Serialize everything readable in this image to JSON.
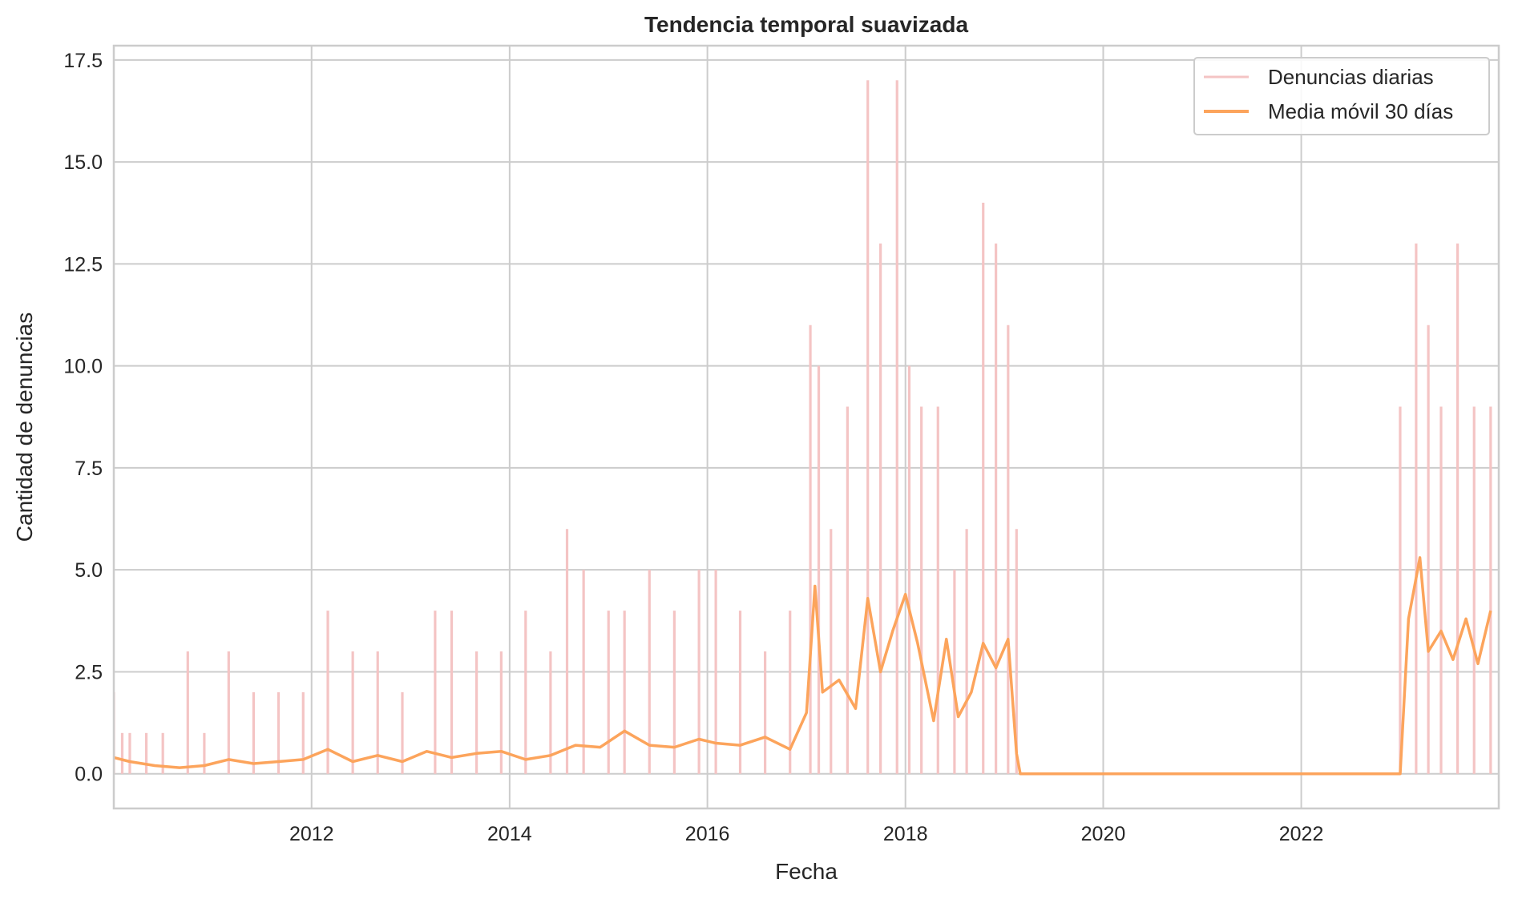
{
  "chart_data": {
    "type": "line",
    "title": "Tendencia temporal suavizada",
    "xlabel": "Fecha",
    "ylabel": "Cantidad de denuncias",
    "x_axis_type": "date",
    "xlim": [
      "2010-01-01",
      "2023-12-31"
    ],
    "ylim": [
      -0.85,
      17.85
    ],
    "x_ticks": [
      {
        "date": "2012-01-01",
        "label": "2012"
      },
      {
        "date": "2014-01-01",
        "label": "2014"
      },
      {
        "date": "2016-01-01",
        "label": "2016"
      },
      {
        "date": "2018-01-01",
        "label": "2018"
      },
      {
        "date": "2020-01-01",
        "label": "2020"
      },
      {
        "date": "2022-01-01",
        "label": "2022"
      }
    ],
    "y_ticks": [
      {
        "value": 0.0,
        "label": "0.0"
      },
      {
        "value": 2.5,
        "label": "2.5"
      },
      {
        "value": 5.0,
        "label": "5.0"
      },
      {
        "value": 7.5,
        "label": "7.5"
      },
      {
        "value": 10.0,
        "label": "10.0"
      },
      {
        "value": 12.5,
        "label": "12.5"
      },
      {
        "value": 15.0,
        "label": "15.0"
      },
      {
        "value": 17.5,
        "label": "17.5"
      }
    ],
    "grid": true,
    "legend_position": "top-right",
    "colors": {
      "daily": "#f4c4c4",
      "rolling": "#fca45c",
      "grid": "#cccccc",
      "frame": "#cccccc",
      "text": "#262626"
    },
    "series": [
      {
        "name": "Denuncias diarias",
        "x": [
          "2010-01-01",
          "2010-02-01",
          "2010-03-01",
          "2010-05-01",
          "2010-07-01",
          "2010-10-01",
          "2010-12-01",
          "2011-03-01",
          "2011-06-01",
          "2011-09-01",
          "2011-12-01",
          "2012-03-01",
          "2012-06-01",
          "2012-09-01",
          "2012-12-01",
          "2013-04-01",
          "2013-06-01",
          "2013-09-01",
          "2013-12-01",
          "2014-03-01",
          "2014-06-01",
          "2014-08-01",
          "2014-10-01",
          "2015-01-01",
          "2015-03-01",
          "2015-06-01",
          "2015-09-01",
          "2015-12-01",
          "2016-02-01",
          "2016-05-01",
          "2016-08-01",
          "2016-11-01",
          "2017-01-15",
          "2017-02-15",
          "2017-04-01",
          "2017-06-01",
          "2017-08-15",
          "2017-10-01",
          "2017-12-01",
          "2018-01-15",
          "2018-03-01",
          "2018-05-01",
          "2018-07-01",
          "2018-08-15",
          "2018-10-15",
          "2018-12-01",
          "2019-01-15",
          "2019-02-15",
          "2019-03-01",
          "2023-01-01",
          "2023-03-01",
          "2023-04-15",
          "2023-06-01",
          "2023-08-01",
          "2023-10-01",
          "2023-12-01"
        ],
        "y": [
          2,
          1,
          1,
          1,
          1,
          3,
          1,
          3,
          2,
          2,
          2,
          4,
          3,
          3,
          2,
          4,
          4,
          3,
          3,
          4,
          3,
          6,
          5,
          4,
          4,
          5,
          4,
          5,
          5,
          4,
          3,
          4,
          11,
          10,
          6,
          9,
          17,
          13,
          17,
          10,
          9,
          9,
          5,
          6,
          14,
          13,
          11,
          6,
          0,
          9,
          13,
          11,
          9,
          13,
          9,
          9
        ]
      },
      {
        "name": "Media móvil 30 días",
        "x": [
          "2010-01-01",
          "2010-03-01",
          "2010-06-01",
          "2010-09-01",
          "2010-12-01",
          "2011-03-01",
          "2011-06-01",
          "2011-09-01",
          "2011-12-01",
          "2012-03-01",
          "2012-06-01",
          "2012-09-01",
          "2012-12-01",
          "2013-03-01",
          "2013-06-01",
          "2013-09-01",
          "2013-12-01",
          "2014-03-01",
          "2014-06-01",
          "2014-09-01",
          "2014-12-01",
          "2015-03-01",
          "2015-06-01",
          "2015-09-01",
          "2015-12-01",
          "2016-02-01",
          "2016-05-01",
          "2016-08-01",
          "2016-11-01",
          "2017-01-01",
          "2017-02-01",
          "2017-03-01",
          "2017-05-01",
          "2017-07-01",
          "2017-08-15",
          "2017-10-01",
          "2017-11-15",
          "2018-01-01",
          "2018-02-15",
          "2018-04-15",
          "2018-06-01",
          "2018-07-15",
          "2018-09-01",
          "2018-10-15",
          "2018-12-01",
          "2019-01-15",
          "2019-02-15",
          "2019-03-01",
          "2019-06-01",
          "2020-01-01",
          "2021-01-01",
          "2022-01-01",
          "2022-12-01",
          "2023-01-01",
          "2023-02-01",
          "2023-03-15",
          "2023-04-15",
          "2023-06-01",
          "2023-07-15",
          "2023-09-01",
          "2023-10-15",
          "2023-12-01"
        ],
        "y": [
          0.4,
          0.3,
          0.2,
          0.15,
          0.2,
          0.35,
          0.25,
          0.3,
          0.35,
          0.6,
          0.3,
          0.45,
          0.3,
          0.55,
          0.4,
          0.5,
          0.55,
          0.35,
          0.45,
          0.7,
          0.65,
          1.05,
          0.7,
          0.65,
          0.85,
          0.75,
          0.7,
          0.9,
          0.6,
          1.5,
          4.6,
          2.0,
          2.3,
          1.6,
          4.3,
          2.5,
          3.5,
          4.4,
          3.2,
          1.3,
          3.3,
          1.4,
          2.0,
          3.2,
          2.6,
          3.3,
          0.5,
          0.0,
          0.0,
          0.0,
          0.0,
          0.0,
          0.0,
          0.0,
          3.8,
          5.3,
          3.0,
          3.5,
          2.8,
          3.8,
          2.7,
          4.0
        ]
      }
    ]
  }
}
